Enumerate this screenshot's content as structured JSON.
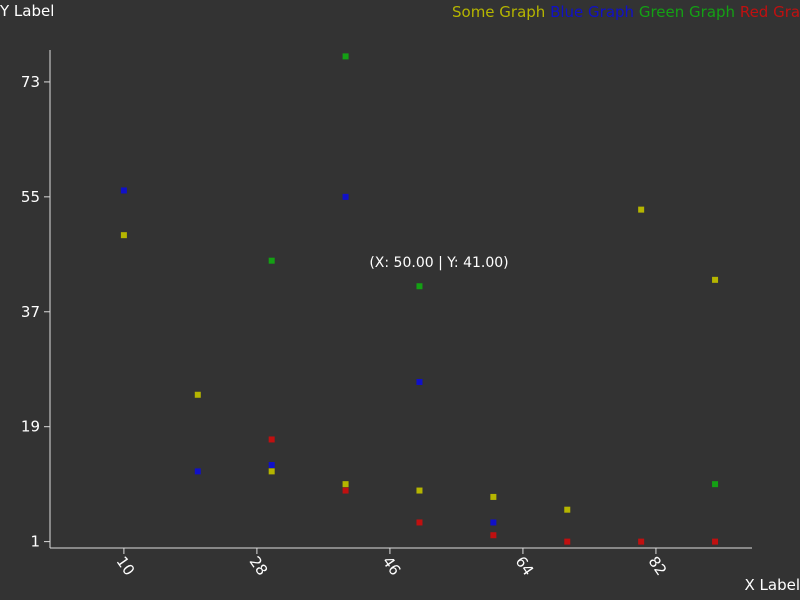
{
  "chart_data": {
    "type": "scatter",
    "xlabel": "X Label",
    "ylabel": "Y Label",
    "xlim": [
      0,
      95
    ],
    "ylim": [
      0,
      78
    ],
    "xticks": [
      10,
      28,
      46,
      64,
      82
    ],
    "yticks": [
      1,
      19,
      37,
      55,
      73
    ],
    "legend_position": "top-right",
    "tooltip": "(X: 50.00 | Y: 41.00)",
    "series": [
      {
        "name": "Some Graph",
        "color": "#b5b500",
        "points": [
          [
            10,
            49
          ],
          [
            20,
            24
          ],
          [
            30,
            12
          ],
          [
            40,
            10
          ],
          [
            50,
            9
          ],
          [
            60,
            8
          ],
          [
            70,
            6
          ],
          [
            80,
            53
          ],
          [
            90,
            42
          ]
        ]
      },
      {
        "name": "Blue Graph",
        "color": "#1010c8",
        "points": [
          [
            10,
            56
          ],
          [
            20,
            12
          ],
          [
            30,
            13
          ],
          [
            40,
            55
          ],
          [
            50,
            26
          ],
          [
            60,
            4
          ]
        ]
      },
      {
        "name": "Green Graph",
        "color": "#14a014",
        "points": [
          [
            30,
            45
          ],
          [
            40,
            77
          ],
          [
            50,
            41
          ],
          [
            90,
            10
          ]
        ]
      },
      {
        "name": "Red Graph",
        "color": "#c01010",
        "points": [
          [
            30,
            17
          ],
          [
            40,
            9
          ],
          [
            50,
            4
          ],
          [
            60,
            2
          ],
          [
            70,
            1
          ],
          [
            80,
            1
          ],
          [
            90,
            1
          ]
        ]
      }
    ]
  }
}
